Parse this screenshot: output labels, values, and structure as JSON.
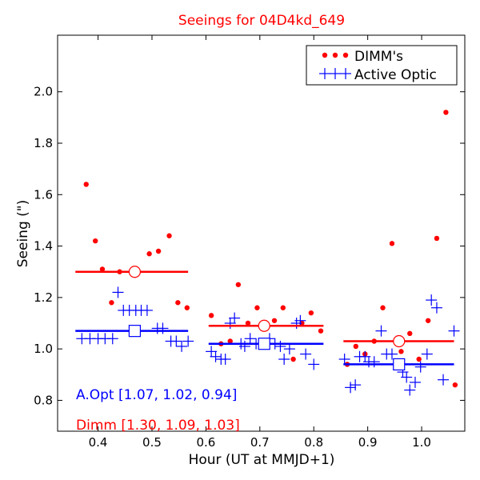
{
  "chart_data": {
    "type": "scatter",
    "title": "Seeings for 04D4kd_649",
    "xlabel": "Hour (UT at MMJD+1)",
    "ylabel": "Seeing (\")",
    "xlim": [
      0.325,
      1.08
    ],
    "ylim": [
      0.68,
      2.22
    ],
    "x_ticks": [
      0.4,
      0.5,
      0.6,
      0.7,
      0.8,
      0.9,
      1.0
    ],
    "x_tick_labels": [
      "0.4",
      "0.5",
      "0.6",
      "0.7",
      "0.8",
      "0.9",
      "1.0"
    ],
    "y_ticks": [
      0.8,
      1.0,
      1.2,
      1.4,
      1.6,
      1.8,
      2.0
    ],
    "y_tick_labels": [
      "0.8",
      "1.0",
      "1.2",
      "1.4",
      "1.6",
      "1.8",
      "2.0"
    ],
    "colors": {
      "dimm": "#ff0000",
      "aopt": "#0000ff",
      "axis": "#000000",
      "title": "#ff0000"
    },
    "legend": {
      "position": "top-right",
      "entries": [
        {
          "label": "DIMM's",
          "series": "dimm",
          "marker": "dot"
        },
        {
          "label": "Active Optic",
          "series": "aopt",
          "marker": "plus"
        }
      ]
    },
    "series": [
      {
        "name": "DIMM's",
        "key": "dimm",
        "marker": "dot",
        "points": [
          [
            0.378,
            1.64
          ],
          [
            0.395,
            1.42
          ],
          [
            0.408,
            1.31
          ],
          [
            0.425,
            1.18
          ],
          [
            0.44,
            1.3
          ],
          [
            0.495,
            1.37
          ],
          [
            0.512,
            1.38
          ],
          [
            0.532,
            1.44
          ],
          [
            0.548,
            1.18
          ],
          [
            0.565,
            1.16
          ],
          [
            0.61,
            1.13
          ],
          [
            0.628,
            1.02
          ],
          [
            0.645,
            1.03
          ],
          [
            0.66,
            1.25
          ],
          [
            0.678,
            1.1
          ],
          [
            0.695,
            1.16
          ],
          [
            0.712,
            1.09
          ],
          [
            0.727,
            1.11
          ],
          [
            0.743,
            1.16
          ],
          [
            0.762,
            0.96
          ],
          [
            0.778,
            1.1
          ],
          [
            0.795,
            1.14
          ],
          [
            0.813,
            1.07
          ],
          [
            0.862,
            0.94
          ],
          [
            0.878,
            1.01
          ],
          [
            0.895,
            0.98
          ],
          [
            0.912,
            1.03
          ],
          [
            0.928,
            1.16
          ],
          [
            0.945,
            1.41
          ],
          [
            0.962,
            0.99
          ],
          [
            0.978,
            1.06
          ],
          [
            0.995,
            0.96
          ],
          [
            1.012,
            1.11
          ],
          [
            1.028,
            1.43
          ],
          [
            1.045,
            1.92
          ],
          [
            1.062,
            0.86
          ]
        ]
      },
      {
        "name": "Active Optic",
        "key": "aopt",
        "marker": "plus",
        "points": [
          [
            0.37,
            1.04
          ],
          [
            0.385,
            1.04
          ],
          [
            0.4,
            1.04
          ],
          [
            0.413,
            1.04
          ],
          [
            0.427,
            1.04
          ],
          [
            0.437,
            1.22
          ],
          [
            0.447,
            1.15
          ],
          [
            0.458,
            1.15
          ],
          [
            0.47,
            1.15
          ],
          [
            0.48,
            1.15
          ],
          [
            0.491,
            1.15
          ],
          [
            0.51,
            1.08
          ],
          [
            0.52,
            1.08
          ],
          [
            0.535,
            1.03
          ],
          [
            0.545,
            1.03
          ],
          [
            0.555,
            1.01
          ],
          [
            0.567,
            1.03
          ],
          [
            0.61,
            0.99
          ],
          [
            0.618,
            0.97
          ],
          [
            0.628,
            0.96
          ],
          [
            0.636,
            0.96
          ],
          [
            0.645,
            1.1
          ],
          [
            0.653,
            1.12
          ],
          [
            0.665,
            1.02
          ],
          [
            0.672,
            1.01
          ],
          [
            0.682,
            1.04
          ],
          [
            0.693,
            1.02
          ],
          [
            0.705,
            1.02
          ],
          [
            0.718,
            1.04
          ],
          [
            0.728,
            1.02
          ],
          [
            0.738,
            1.01
          ],
          [
            0.745,
            0.96
          ],
          [
            0.755,
            1.0
          ],
          [
            0.768,
            1.1
          ],
          [
            0.775,
            1.11
          ],
          [
            0.785,
            0.98
          ],
          [
            0.8,
            0.94
          ],
          [
            0.857,
            0.96
          ],
          [
            0.868,
            0.85
          ],
          [
            0.877,
            0.86
          ],
          [
            0.885,
            0.97
          ],
          [
            0.895,
            0.97
          ],
          [
            0.902,
            0.95
          ],
          [
            0.912,
            0.95
          ],
          [
            0.925,
            1.07
          ],
          [
            0.935,
            0.98
          ],
          [
            0.945,
            0.98
          ],
          [
            0.955,
            0.94
          ],
          [
            0.965,
            0.91
          ],
          [
            0.972,
            0.89
          ],
          [
            0.978,
            0.84
          ],
          [
            0.988,
            0.87
          ],
          [
            0.998,
            0.93
          ],
          [
            1.01,
            0.98
          ],
          [
            1.018,
            1.19
          ],
          [
            1.028,
            1.16
          ],
          [
            1.04,
            0.88
          ],
          [
            1.06,
            1.07
          ]
        ]
      }
    ],
    "medians": [
      {
        "series": "dimm",
        "x_start": 0.358,
        "x_end": 0.567,
        "value": 1.3,
        "marker_x": 0.468,
        "marker": "circle"
      },
      {
        "series": "dimm",
        "x_start": 0.605,
        "x_end": 0.818,
        "value": 1.09,
        "marker_x": 0.708,
        "marker": "circle"
      },
      {
        "series": "dimm",
        "x_start": 0.855,
        "x_end": 1.06,
        "value": 1.03,
        "marker_x": 0.958,
        "marker": "circle"
      },
      {
        "series": "aopt",
        "x_start": 0.358,
        "x_end": 0.567,
        "value": 1.07,
        "marker_x": 0.468,
        "marker": "square"
      },
      {
        "series": "aopt",
        "x_start": 0.605,
        "x_end": 0.818,
        "value": 1.02,
        "marker_x": 0.708,
        "marker": "square"
      },
      {
        "series": "aopt",
        "x_start": 0.855,
        "x_end": 1.06,
        "value": 0.94,
        "marker_x": 0.958,
        "marker": "square"
      }
    ],
    "annotations": [
      {
        "key": "aopt",
        "text": "A.Opt [1.07, 1.02, 0.94]"
      },
      {
        "key": "dimm",
        "text": "Dimm [1.30, 1.09, 1.03]"
      }
    ]
  }
}
